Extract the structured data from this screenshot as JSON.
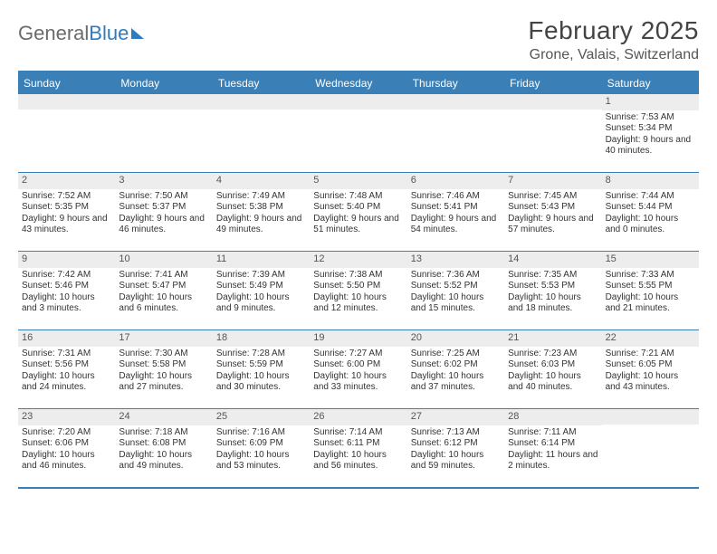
{
  "logo": {
    "text1": "General",
    "text2": "Blue"
  },
  "title": "February 2025",
  "location": "Grone, Valais, Switzerland",
  "colors": {
    "header_blue": "#3a7fb5",
    "row_stripe": "#ededed",
    "logo_gray": "#6b6b6b",
    "logo_blue": "#2f7bbf",
    "text": "#333333"
  },
  "day_headers": [
    "Sunday",
    "Monday",
    "Tuesday",
    "Wednesday",
    "Thursday",
    "Friday",
    "Saturday"
  ],
  "weeks": [
    [
      {
        "n": "",
        "empty": true
      },
      {
        "n": "",
        "empty": true
      },
      {
        "n": "",
        "empty": true
      },
      {
        "n": "",
        "empty": true
      },
      {
        "n": "",
        "empty": true
      },
      {
        "n": "",
        "empty": true
      },
      {
        "n": "1",
        "sunrise": "7:53 AM",
        "sunset": "5:34 PM",
        "daylight": "9 hours and 40 minutes."
      }
    ],
    [
      {
        "n": "2",
        "sunrise": "7:52 AM",
        "sunset": "5:35 PM",
        "daylight": "9 hours and 43 minutes."
      },
      {
        "n": "3",
        "sunrise": "7:50 AM",
        "sunset": "5:37 PM",
        "daylight": "9 hours and 46 minutes."
      },
      {
        "n": "4",
        "sunrise": "7:49 AM",
        "sunset": "5:38 PM",
        "daylight": "9 hours and 49 minutes."
      },
      {
        "n": "5",
        "sunrise": "7:48 AM",
        "sunset": "5:40 PM",
        "daylight": "9 hours and 51 minutes."
      },
      {
        "n": "6",
        "sunrise": "7:46 AM",
        "sunset": "5:41 PM",
        "daylight": "9 hours and 54 minutes."
      },
      {
        "n": "7",
        "sunrise": "7:45 AM",
        "sunset": "5:43 PM",
        "daylight": "9 hours and 57 minutes."
      },
      {
        "n": "8",
        "sunrise": "7:44 AM",
        "sunset": "5:44 PM",
        "daylight": "10 hours and 0 minutes."
      }
    ],
    [
      {
        "n": "9",
        "sunrise": "7:42 AM",
        "sunset": "5:46 PM",
        "daylight": "10 hours and 3 minutes."
      },
      {
        "n": "10",
        "sunrise": "7:41 AM",
        "sunset": "5:47 PM",
        "daylight": "10 hours and 6 minutes."
      },
      {
        "n": "11",
        "sunrise": "7:39 AM",
        "sunset": "5:49 PM",
        "daylight": "10 hours and 9 minutes."
      },
      {
        "n": "12",
        "sunrise": "7:38 AM",
        "sunset": "5:50 PM",
        "daylight": "10 hours and 12 minutes."
      },
      {
        "n": "13",
        "sunrise": "7:36 AM",
        "sunset": "5:52 PM",
        "daylight": "10 hours and 15 minutes."
      },
      {
        "n": "14",
        "sunrise": "7:35 AM",
        "sunset": "5:53 PM",
        "daylight": "10 hours and 18 minutes."
      },
      {
        "n": "15",
        "sunrise": "7:33 AM",
        "sunset": "5:55 PM",
        "daylight": "10 hours and 21 minutes."
      }
    ],
    [
      {
        "n": "16",
        "sunrise": "7:31 AM",
        "sunset": "5:56 PM",
        "daylight": "10 hours and 24 minutes."
      },
      {
        "n": "17",
        "sunrise": "7:30 AM",
        "sunset": "5:58 PM",
        "daylight": "10 hours and 27 minutes."
      },
      {
        "n": "18",
        "sunrise": "7:28 AM",
        "sunset": "5:59 PM",
        "daylight": "10 hours and 30 minutes."
      },
      {
        "n": "19",
        "sunrise": "7:27 AM",
        "sunset": "6:00 PM",
        "daylight": "10 hours and 33 minutes."
      },
      {
        "n": "20",
        "sunrise": "7:25 AM",
        "sunset": "6:02 PM",
        "daylight": "10 hours and 37 minutes."
      },
      {
        "n": "21",
        "sunrise": "7:23 AM",
        "sunset": "6:03 PM",
        "daylight": "10 hours and 40 minutes."
      },
      {
        "n": "22",
        "sunrise": "7:21 AM",
        "sunset": "6:05 PM",
        "daylight": "10 hours and 43 minutes."
      }
    ],
    [
      {
        "n": "23",
        "sunrise": "7:20 AM",
        "sunset": "6:06 PM",
        "daylight": "10 hours and 46 minutes."
      },
      {
        "n": "24",
        "sunrise": "7:18 AM",
        "sunset": "6:08 PM",
        "daylight": "10 hours and 49 minutes."
      },
      {
        "n": "25",
        "sunrise": "7:16 AM",
        "sunset": "6:09 PM",
        "daylight": "10 hours and 53 minutes."
      },
      {
        "n": "26",
        "sunrise": "7:14 AM",
        "sunset": "6:11 PM",
        "daylight": "10 hours and 56 minutes."
      },
      {
        "n": "27",
        "sunrise": "7:13 AM",
        "sunset": "6:12 PM",
        "daylight": "10 hours and 59 minutes."
      },
      {
        "n": "28",
        "sunrise": "7:11 AM",
        "sunset": "6:14 PM",
        "daylight": "11 hours and 2 minutes."
      },
      {
        "n": "",
        "empty": true
      }
    ]
  ],
  "labels": {
    "sunrise": "Sunrise:",
    "sunset": "Sunset:",
    "daylight": "Daylight:"
  }
}
